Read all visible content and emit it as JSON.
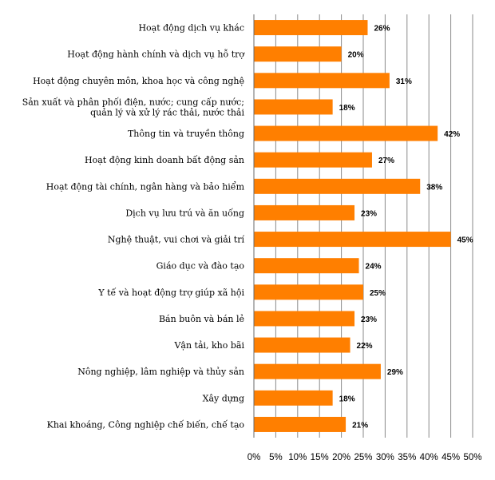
{
  "chart_data": {
    "type": "bar",
    "orientation": "horizontal",
    "categories": [
      [
        "Hoạt động dịch vụ khác"
      ],
      [
        "Hoạt động hành chính và dịch vụ hỗ trợ"
      ],
      [
        "Hoạt động chuyên môn, khoa học và công nghệ"
      ],
      [
        "Sản xuất và phân phối điện, nước; cung cấp nước;",
        "quản lý và xử lý rác thải, nước thải"
      ],
      [
        "Thông tin và truyền thông"
      ],
      [
        "Hoạt động kinh doanh bất động sản"
      ],
      [
        "Hoạt động tài chính, ngân hàng và bảo hiểm"
      ],
      [
        "Dịch vụ lưu trú và ăn uống"
      ],
      [
        "Nghệ thuật, vui chơi và giải trí"
      ],
      [
        "Giáo dục và đào tạo"
      ],
      [
        "Y tế và hoạt động trợ giúp xã hội"
      ],
      [
        "Bán buôn và bán lẻ"
      ],
      [
        "Vận tải, kho bãi"
      ],
      [
        "Nông nghiệp, lâm nghiệp và thủy sản"
      ],
      [
        "Xây dựng"
      ],
      [
        "Khai khoáng, Công nghiệp chế biến, chế tạo"
      ]
    ],
    "values": [
      26,
      20,
      31,
      18,
      42,
      27,
      38,
      23,
      45,
      24,
      25,
      23,
      22,
      29,
      18,
      21
    ],
    "value_labels": [
      "26%",
      "20%",
      "31%",
      "18%",
      "42%",
      "27%",
      "38%",
      "23%",
      "45%",
      "24%",
      "25%",
      "23%",
      "22%",
      "29%",
      "18%",
      "21%"
    ],
    "xlim": [
      0,
      50
    ],
    "x_ticks": [
      0,
      5,
      10,
      15,
      20,
      25,
      30,
      35,
      40,
      45,
      50
    ],
    "x_tick_labels": [
      "0%",
      "5%",
      "10%",
      "15%",
      "20%",
      "25%",
      "30%",
      "35%",
      "40%",
      "45%",
      "50%"
    ],
    "bar_color": "#FF7F00",
    "grid": true,
    "legend": "none",
    "title": "",
    "xlabel": "",
    "ylabel": ""
  }
}
